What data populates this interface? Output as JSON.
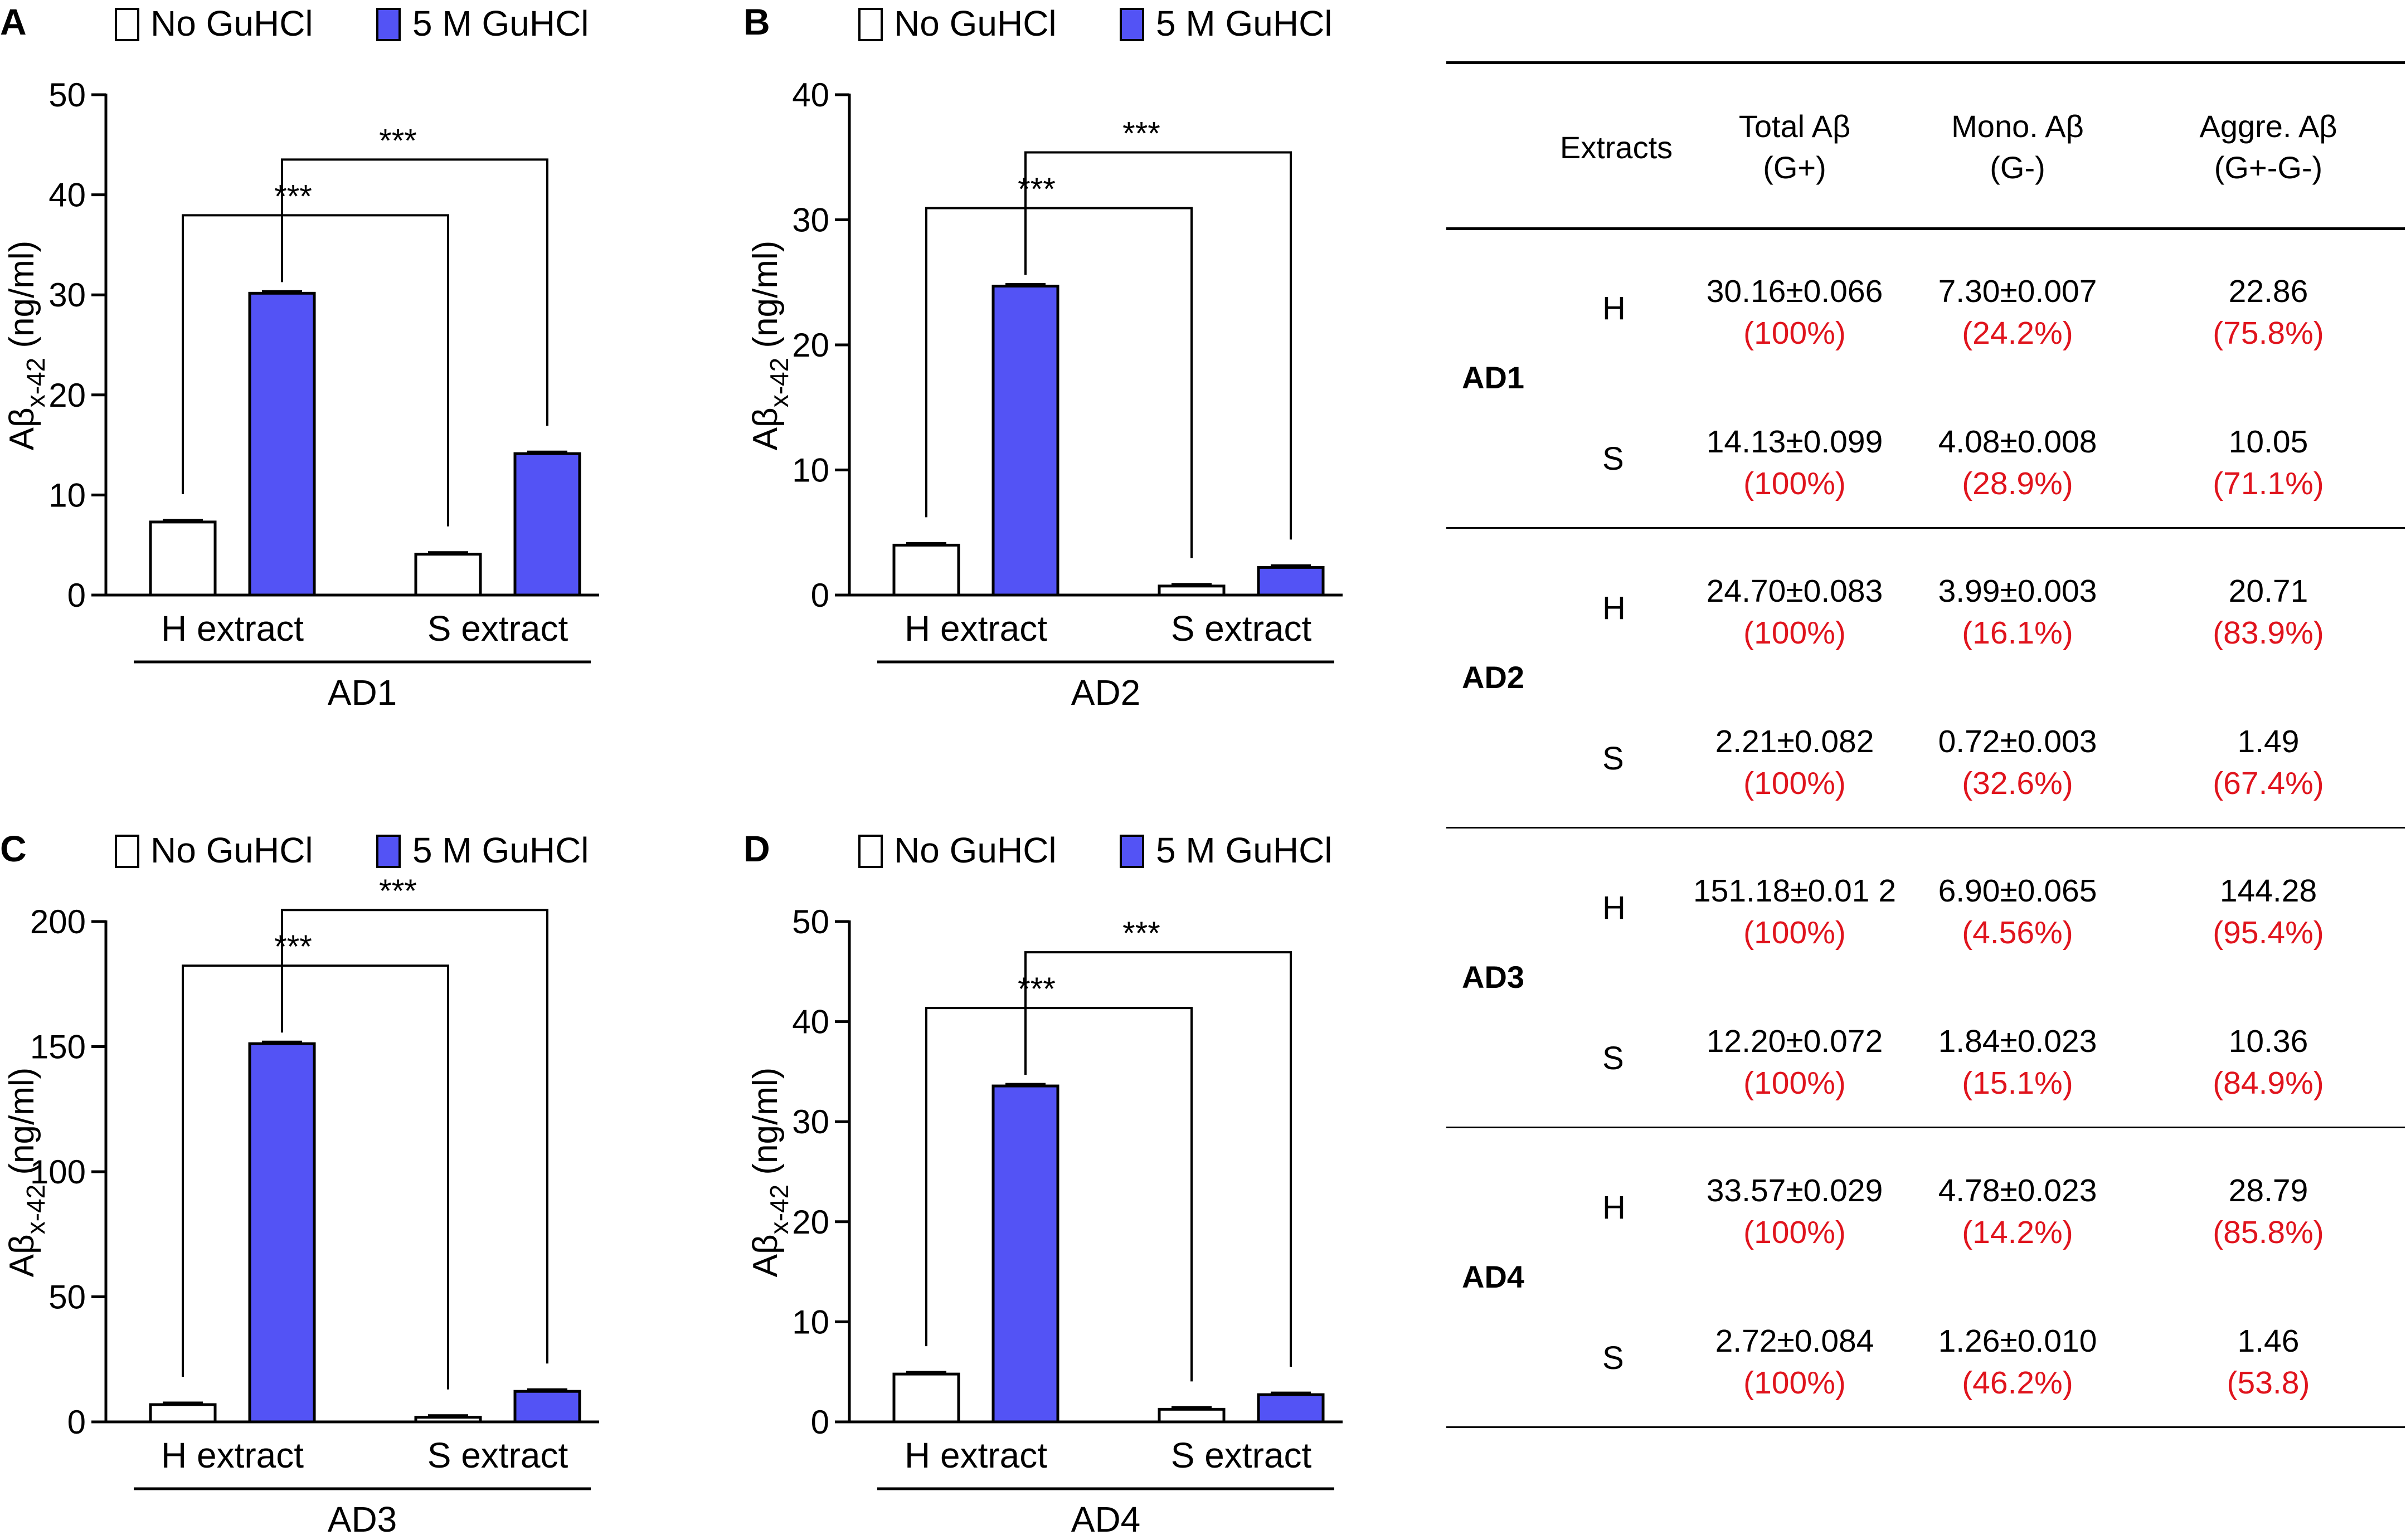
{
  "colors": {
    "no_guhcl": "#ffffff",
    "guhcl": "#5353f5",
    "ink": "#000000",
    "percent_red": "#e0141d"
  },
  "legend": {
    "no_guhcl": "No GuHCl",
    "guhcl": "5 M GuHCl"
  },
  "axis": {
    "ylabel_main": "Aβ",
    "ylabel_sub": "x-42",
    "ylabel_unit": " (ng/ml)"
  },
  "chart_data": [
    {
      "type": "bar",
      "panel": "A",
      "title": "AD1",
      "categories": [
        "H extract",
        "S extract"
      ],
      "series": [
        {
          "name": "No GuHCl",
          "values": [
            7.3,
            4.08
          ]
        },
        {
          "name": "5 M GuHCl",
          "values": [
            30.16,
            14.13
          ]
        }
      ],
      "ylabel": "Aβx-42 (ng/ml)",
      "ylim": [
        0,
        50
      ],
      "yticks": [
        0,
        10,
        20,
        30,
        40,
        50
      ],
      "significance": [
        "***",
        "***"
      ]
    },
    {
      "type": "bar",
      "panel": "B",
      "title": "AD2",
      "categories": [
        "H extract",
        "S extract"
      ],
      "series": [
        {
          "name": "No GuHCl",
          "values": [
            3.99,
            0.72
          ]
        },
        {
          "name": "5 M GuHCl",
          "values": [
            24.7,
            2.21
          ]
        }
      ],
      "ylabel": "Aβx-42 (ng/ml)",
      "ylim": [
        0,
        40
      ],
      "yticks": [
        0,
        10,
        20,
        30,
        40
      ],
      "significance": [
        "***",
        "***"
      ]
    },
    {
      "type": "bar",
      "panel": "C",
      "title": "AD3",
      "categories": [
        "H extract",
        "S extract"
      ],
      "series": [
        {
          "name": "No GuHCl",
          "values": [
            6.9,
            1.84
          ]
        },
        {
          "name": "5 M GuHCl",
          "values": [
            151.18,
            12.2
          ]
        }
      ],
      "ylabel": "Aβx-42 (ng/ml)",
      "ylim": [
        0,
        200
      ],
      "yticks": [
        0,
        50,
        100,
        150,
        200
      ],
      "significance": [
        "***",
        "***"
      ]
    },
    {
      "type": "bar",
      "panel": "D",
      "title": "AD4",
      "categories": [
        "H extract",
        "S extract"
      ],
      "series": [
        {
          "name": "No GuHCl",
          "values": [
            4.78,
            1.26
          ]
        },
        {
          "name": "5 M GuHCl",
          "values": [
            33.57,
            2.72
          ]
        }
      ],
      "ylabel": "Aβx-42 (ng/ml)",
      "ylim": [
        0,
        50
      ],
      "yticks": [
        0,
        10,
        20,
        30,
        40,
        50
      ],
      "significance": [
        "***",
        "***"
      ]
    }
  ],
  "table": {
    "headers": {
      "extracts": "Extracts",
      "total": "Total Aβ",
      "total_sub": "(G+)",
      "mono": "Mono. Aβ",
      "mono_sub": "(G-)",
      "aggre": "Aggre. Aβ",
      "aggre_sub": "(G+-G-)"
    },
    "groups": [
      {
        "name": "AD1",
        "rows": [
          {
            "fraction": "H",
            "total": "30.16±0.066",
            "total_pct": "(100%)",
            "mono": "7.30±0.007",
            "mono_pct": "(24.2%)",
            "aggre": "22.86",
            "aggre_pct": "(75.8%)"
          },
          {
            "fraction": "S",
            "total": "14.13±0.099",
            "total_pct": "(100%)",
            "mono": "4.08±0.008",
            "mono_pct": "(28.9%)",
            "aggre": "10.05",
            "aggre_pct": "(71.1%)"
          }
        ]
      },
      {
        "name": "AD2",
        "rows": [
          {
            "fraction": "H",
            "total": "24.70±0.083",
            "total_pct": "(100%)",
            "mono": "3.99±0.003",
            "mono_pct": "(16.1%)",
            "aggre": "20.71",
            "aggre_pct": "(83.9%)"
          },
          {
            "fraction": "S",
            "total": "2.21±0.082",
            "total_pct": "(100%)",
            "mono": "0.72±0.003",
            "mono_pct": "(32.6%)",
            "aggre": "1.49",
            "aggre_pct": "(67.4%)"
          }
        ]
      },
      {
        "name": "AD3",
        "rows": [
          {
            "fraction": "H",
            "total": "151.18±0.01 2",
            "total_pct": "(100%)",
            "mono": "6.90±0.065",
            "mono_pct": "(4.56%)",
            "aggre": "144.28",
            "aggre_pct": "(95.4%)"
          },
          {
            "fraction": "S",
            "total": "12.20±0.072",
            "total_pct": "(100%)",
            "mono": "1.84±0.023",
            "mono_pct": "(15.1%)",
            "aggre": "10.36",
            "aggre_pct": "(84.9%)"
          }
        ]
      },
      {
        "name": "AD4",
        "rows": [
          {
            "fraction": "H",
            "total": "33.57±0.029",
            "total_pct": "(100%)",
            "mono": "4.78±0.023",
            "mono_pct": "(14.2%)",
            "aggre": "28.79",
            "aggre_pct": "(85.8%)"
          },
          {
            "fraction": "S",
            "total": "2.72±0.084",
            "total_pct": "(100%)",
            "mono": "1.26±0.010",
            "mono_pct": "(46.2%)",
            "aggre": "1.46",
            "aggre_pct": "(53.8)"
          }
        ]
      }
    ]
  }
}
